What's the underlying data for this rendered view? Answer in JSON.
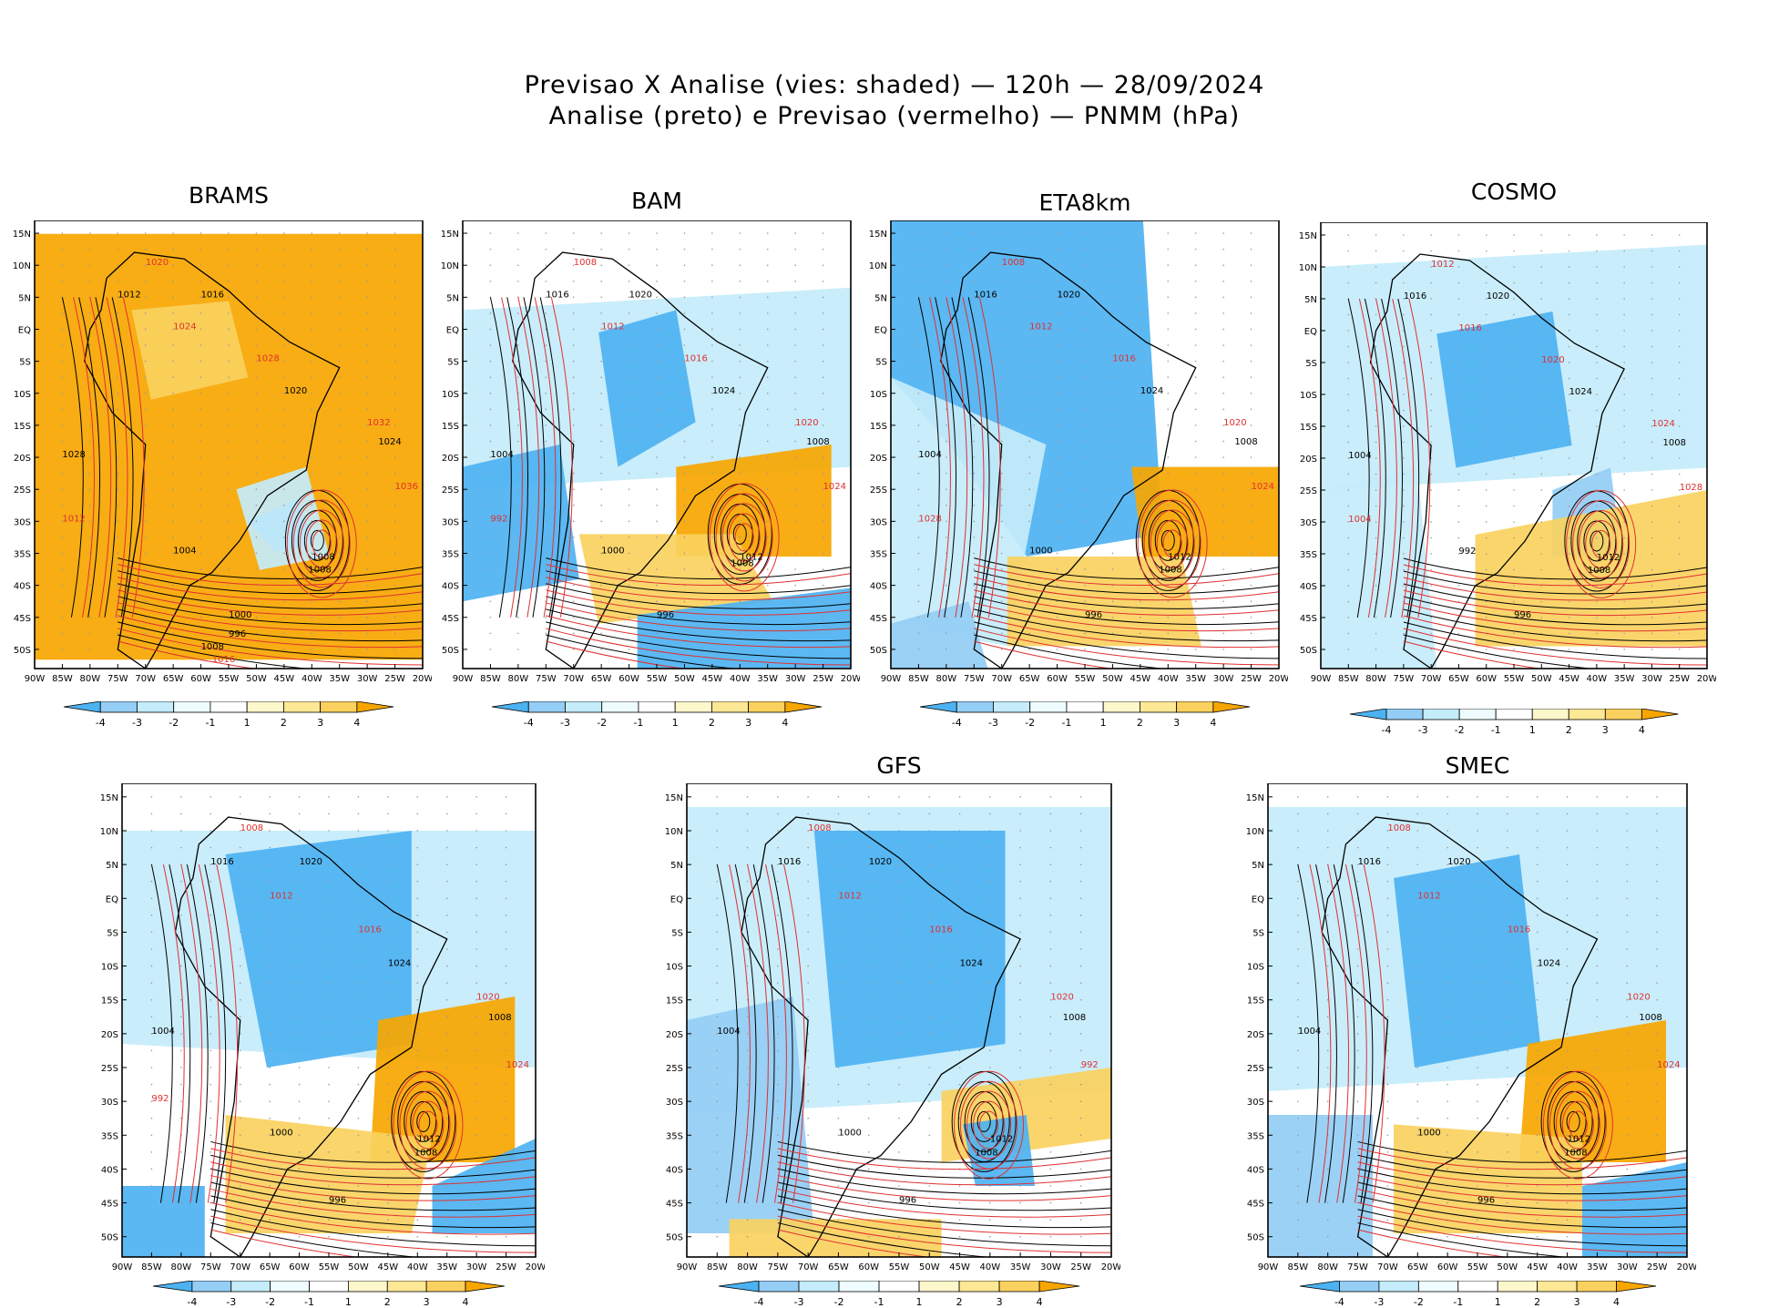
{
  "figure": {
    "title_line1": "Previsao X Analise (vies: shaded) — 120h — 28/09/2024",
    "title_line2": "Analise (preto) e Previsao (vermelho) — PNMM (hPa)"
  },
  "colors": {
    "neg4": "#4db2f2",
    "neg3": "#94cdf5",
    "neg2": "#c4ecfb",
    "neg1": "#eefcff",
    "zero": "#ffffff",
    "pos1": "#fdf7cc",
    "pos2": "#fde895",
    "pos3": "#fad15e",
    "pos4": "#f7a600",
    "analysis_line": "#000000",
    "forecast_line": "#e03030"
  },
  "chart_data": [
    {
      "type": "heatmap",
      "model": "BRAMS",
      "title": "BRAMS",
      "xlim": [
        -90,
        -20
      ],
      "ylim": [
        -53,
        17
      ],
      "lat_ticks": [
        "15N",
        "10N",
        "5N",
        "EQ",
        "5S",
        "10S",
        "15S",
        "20S",
        "25S",
        "30S",
        "35S",
        "40S",
        "45S",
        "50S"
      ],
      "lon_ticks": [
        "90W",
        "85W",
        "80W",
        "75W",
        "70W",
        "65W",
        "60W",
        "55W",
        "50W",
        "45W",
        "40W",
        "35W",
        "30W",
        "25W",
        "20W"
      ],
      "colorbar": {
        "labels": [
          "-4",
          "-3",
          "-2",
          "-1",
          "1",
          "2",
          "3",
          "4"
        ]
      },
      "contour_labels_analysis": [
        "1008",
        "1012",
        "1016",
        "1020",
        "1024",
        "1028",
        "1004",
        "1000",
        "996",
        "1008"
      ],
      "contour_labels_forecast": [
        "1020",
        "1024",
        "1028",
        "1032",
        "1036",
        "1012",
        "1016"
      ],
      "low_center": {
        "lon": -39,
        "lat": -33,
        "label": "1008"
      }
    },
    {
      "type": "heatmap",
      "model": "BAM",
      "title": "BAM",
      "xlim": [
        -90,
        -20
      ],
      "ylim": [
        -53,
        17
      ],
      "lat_ticks": [
        "15N",
        "10N",
        "5N",
        "EQ",
        "5S",
        "10S",
        "15S",
        "20S",
        "25S",
        "30S",
        "35S",
        "40S",
        "45S",
        "50S"
      ],
      "lon_ticks": [
        "90W",
        "85W",
        "80W",
        "75W",
        "70W",
        "65W",
        "60W",
        "55W",
        "50W",
        "45W",
        "40W",
        "35W",
        "30W",
        "25W",
        "20W"
      ],
      "colorbar": {
        "labels": [
          "-4",
          "-3",
          "-2",
          "-1",
          "1",
          "2",
          "3",
          "4"
        ]
      },
      "contour_labels_analysis": [
        "1012",
        "1016",
        "1020",
        "1024",
        "1008",
        "1004",
        "1000",
        "996"
      ],
      "contour_labels_forecast": [
        "1008",
        "1012",
        "1016",
        "1020",
        "1024",
        "992"
      ],
      "low_center": {
        "lon": -40,
        "lat": -32,
        "label": "1008"
      }
    },
    {
      "type": "heatmap",
      "model": "ETA8km",
      "title": "ETA8km",
      "xlim": [
        -90,
        -20
      ],
      "ylim": [
        -53,
        17
      ],
      "lat_ticks": [
        "15N",
        "10N",
        "5N",
        "EQ",
        "5S",
        "10S",
        "15S",
        "20S",
        "25S",
        "30S",
        "35S",
        "40S",
        "45S",
        "50S"
      ],
      "lon_ticks": [
        "90W",
        "85W",
        "80W",
        "75W",
        "70W",
        "65W",
        "60W",
        "55W",
        "50W",
        "45W",
        "40W",
        "35W",
        "30W",
        "25W",
        "20W"
      ],
      "colorbar": {
        "labels": [
          "-4",
          "-3",
          "-2",
          "-1",
          "1",
          "2",
          "3",
          "4"
        ]
      },
      "contour_labels_analysis": [
        "1012",
        "1016",
        "1020",
        "1024",
        "1008",
        "1004",
        "1000",
        "996"
      ],
      "contour_labels_forecast": [
        "1008",
        "1012",
        "1016",
        "1020",
        "1024",
        "1028"
      ],
      "low_center": {
        "lon": -40,
        "lat": -33,
        "label": "1008"
      }
    },
    {
      "type": "heatmap",
      "model": "COSMO",
      "title": "COSMO",
      "xlim": [
        -90,
        -20
      ],
      "ylim": [
        -53,
        17
      ],
      "lat_ticks": [
        "15N",
        "10N",
        "5N",
        "EQ",
        "5S",
        "10S",
        "15S",
        "20S",
        "25S",
        "30S",
        "35S",
        "40S",
        "45S",
        "50S"
      ],
      "lon_ticks": [
        "90W",
        "85W",
        "80W",
        "75W",
        "70W",
        "65W",
        "60W",
        "55W",
        "50W",
        "45W",
        "40W",
        "35W",
        "30W",
        "25W",
        "20W"
      ],
      "colorbar": {
        "labels": [
          "-4",
          "-3",
          "-2",
          "-1",
          "1",
          "2",
          "3",
          "4"
        ]
      },
      "contour_labels_analysis": [
        "1012",
        "1016",
        "1020",
        "1024",
        "1008",
        "1004",
        "992",
        "996"
      ],
      "contour_labels_forecast": [
        "1012",
        "1016",
        "1020",
        "1024",
        "1028",
        "1004"
      ],
      "low_center": {
        "lon": -40,
        "lat": -33,
        "label": "1008"
      }
    },
    {
      "type": "heatmap",
      "model": "",
      "title": "",
      "xlim": [
        -90,
        -20
      ],
      "ylim": [
        -53,
        17
      ],
      "lat_ticks": [
        "15N",
        "10N",
        "5N",
        "EQ",
        "5S",
        "10S",
        "15S",
        "20S",
        "25S",
        "30S",
        "35S",
        "40S",
        "45S",
        "50S"
      ],
      "lon_ticks": [
        "90W",
        "85W",
        "80W",
        "75W",
        "70W",
        "65W",
        "60W",
        "55W",
        "50W",
        "45W",
        "40W",
        "35W",
        "30W",
        "25W",
        "20W"
      ],
      "colorbar": {
        "labels": [
          "-4",
          "-3",
          "-2",
          "-1",
          "1",
          "2",
          "3",
          "4"
        ]
      },
      "contour_labels_analysis": [
        "1012",
        "1016",
        "1020",
        "1024",
        "1008",
        "1004",
        "1000",
        "996"
      ],
      "contour_labels_forecast": [
        "1008",
        "1012",
        "1016",
        "1020",
        "1024",
        "992"
      ],
      "low_center": {
        "lon": -39,
        "lat": -33,
        "label": "1008"
      }
    },
    {
      "type": "heatmap",
      "model": "GFS",
      "title": "GFS",
      "xlim": [
        -90,
        -20
      ],
      "ylim": [
        -53,
        17
      ],
      "lat_ticks": [
        "15N",
        "10N",
        "5N",
        "EQ",
        "5S",
        "10S",
        "15S",
        "20S",
        "25S",
        "30S",
        "35S",
        "40S",
        "45S",
        "50S"
      ],
      "lon_ticks": [
        "90W",
        "85W",
        "80W",
        "75W",
        "70W",
        "65W",
        "60W",
        "55W",
        "50W",
        "45W",
        "40W",
        "35W",
        "30W",
        "25W",
        "20W"
      ],
      "colorbar": {
        "labels": [
          "-4",
          "-3",
          "-2",
          "-1",
          "1",
          "2",
          "3",
          "4"
        ]
      },
      "contour_labels_analysis": [
        "1012",
        "1016",
        "1020",
        "1024",
        "1008",
        "1004",
        "1000",
        "996"
      ],
      "contour_labels_forecast": [
        "1008",
        "1012",
        "1016",
        "1020",
        "992"
      ],
      "low_center": {
        "lon": -41,
        "lat": -33,
        "label": "1008"
      }
    },
    {
      "type": "heatmap",
      "model": "SMEC",
      "title": "SMEC",
      "xlim": [
        -90,
        -20
      ],
      "ylim": [
        -53,
        17
      ],
      "lat_ticks": [
        "15N",
        "10N",
        "5N",
        "EQ",
        "5S",
        "10S",
        "15S",
        "20S",
        "25S",
        "30S",
        "35S",
        "40S",
        "45S",
        "50S"
      ],
      "lon_ticks": [
        "90W",
        "85W",
        "80W",
        "75W",
        "70W",
        "65W",
        "60W",
        "55W",
        "50W",
        "45W",
        "40W",
        "35W",
        "30W",
        "25W",
        "20W"
      ],
      "colorbar": {
        "labels": [
          "-4",
          "-3",
          "-2",
          "-1",
          "1",
          "2",
          "3",
          "4"
        ]
      },
      "contour_labels_analysis": [
        "1012",
        "1016",
        "1020",
        "1024",
        "1008",
        "1004",
        "1000",
        "996"
      ],
      "contour_labels_forecast": [
        "1008",
        "1012",
        "1016",
        "1020",
        "1024"
      ],
      "low_center": {
        "lon": -39,
        "lat": -33,
        "label": "1008"
      }
    }
  ]
}
